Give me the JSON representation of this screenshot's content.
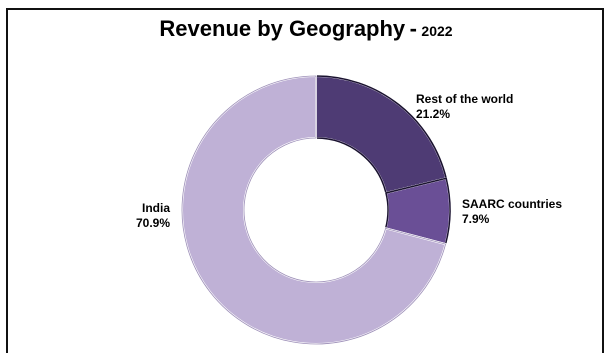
{
  "chart_data": {
    "type": "pie",
    "title": "Revenue by Geography",
    "title_separator": "-",
    "title_year": "2022",
    "donut": true,
    "slices": [
      {
        "label": "Rest of the world",
        "value": 21.2,
        "value_text": "21.2%",
        "color": "#4e3b74"
      },
      {
        "label": "SAARC countries",
        "value": 7.9,
        "value_text": "7.9%",
        "color": "#6a4f96"
      },
      {
        "label": "India",
        "value": 70.9,
        "value_text": "70.9%",
        "color": "#bfb1d6"
      }
    ]
  }
}
